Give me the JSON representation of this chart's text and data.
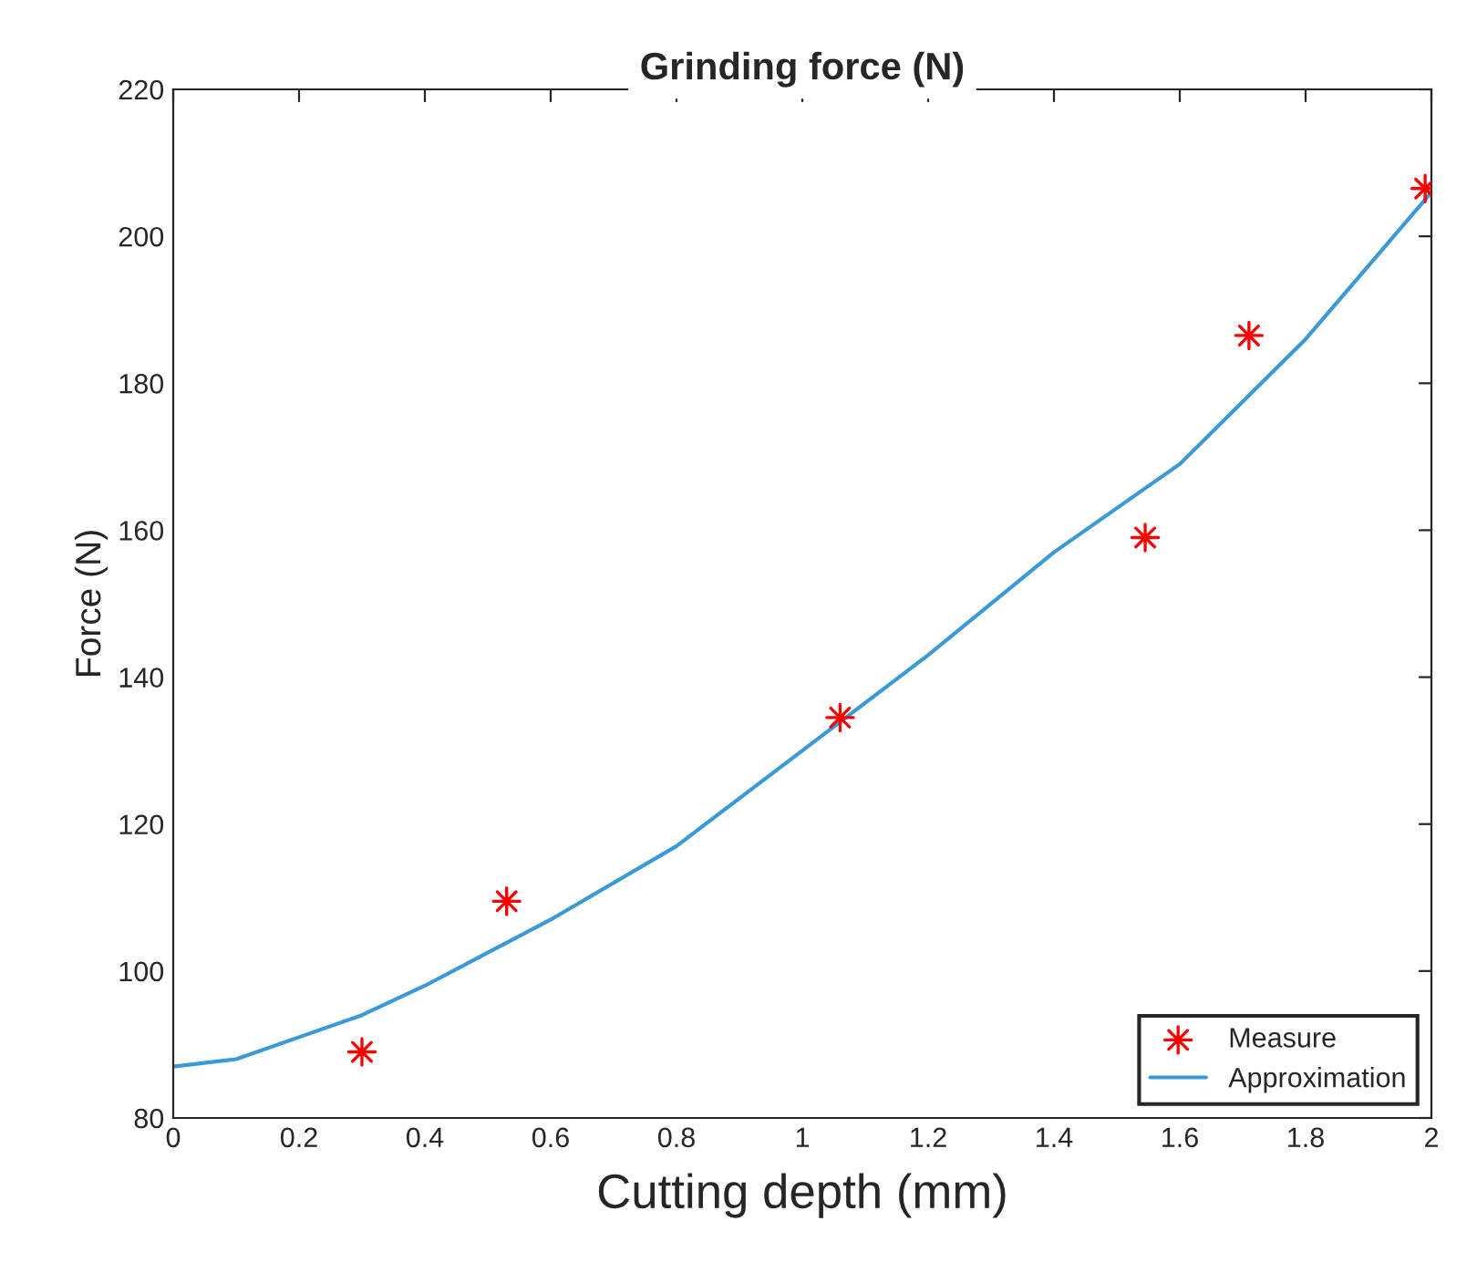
{
  "chart_data": {
    "type": "line",
    "title": "Grinding force (N)",
    "xlabel": "Cutting depth (mm)",
    "ylabel": "Force (N)",
    "xlim": [
      0,
      2
    ],
    "xticks": [
      0,
      0.2,
      0.4,
      0.6,
      0.8,
      1,
      1.2,
      1.4,
      1.6,
      1.8,
      2
    ],
    "ylim": [
      80,
      220
    ],
    "yticks": [
      80,
      100,
      120,
      140,
      160,
      180,
      200,
      220
    ],
    "grid": false,
    "legend": "bottom right",
    "series": [
      {
        "name": "Measure",
        "type": "scatter",
        "marker": "star",
        "color": "#ff0000",
        "x": [
          0.3,
          0.53,
          1.06,
          1.545,
          1.71,
          1.99
        ],
        "values": [
          89,
          109.5,
          134.5,
          159,
          186.5,
          206.5
        ]
      },
      {
        "name": "Approximation",
        "marker": "none",
        "color": "#3a9ad9",
        "x": [
          0,
          0.1,
          0.2,
          0.3,
          0.4,
          0.5,
          0.6,
          0.8,
          1.0,
          1.2,
          1.4,
          1.6,
          1.8,
          2.0
        ],
        "values": [
          87,
          88,
          91,
          94,
          98,
          102.5,
          107,
          117,
          130,
          143,
          157,
          169,
          186,
          206
        ]
      }
    ]
  }
}
